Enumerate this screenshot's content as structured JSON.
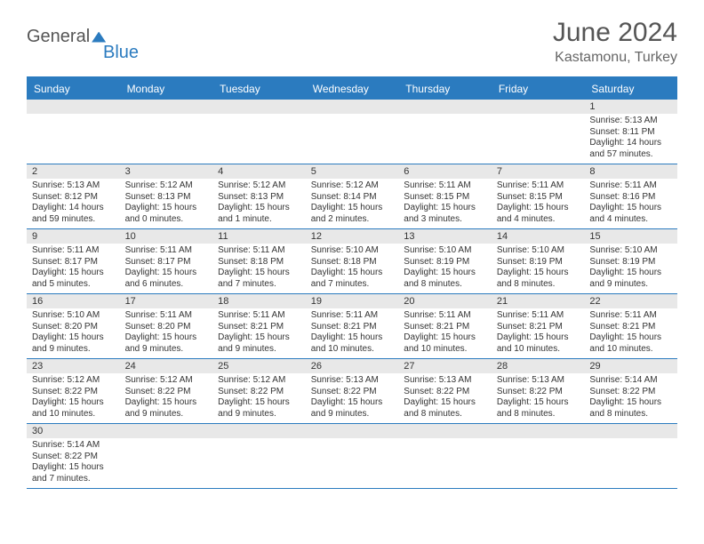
{
  "brand": {
    "part1": "General",
    "part2": "Blue"
  },
  "title": "June 2024",
  "location": "Kastamonu, Turkey",
  "day_names": [
    "Sunday",
    "Monday",
    "Tuesday",
    "Wednesday",
    "Thursday",
    "Friday",
    "Saturday"
  ],
  "colors": {
    "header_bg": "#2b7bbf",
    "header_text": "#ffffff",
    "daynum_bg": "#e8e8e8",
    "border": "#2b7bbf",
    "text": "#333333",
    "title_text": "#555555"
  },
  "weeks": [
    [
      null,
      null,
      null,
      null,
      null,
      null,
      {
        "n": "1",
        "rise": "Sunrise: 5:13 AM",
        "set": "Sunset: 8:11 PM",
        "day": "Daylight: 14 hours and 57 minutes."
      }
    ],
    [
      {
        "n": "2",
        "rise": "Sunrise: 5:13 AM",
        "set": "Sunset: 8:12 PM",
        "day": "Daylight: 14 hours and 59 minutes."
      },
      {
        "n": "3",
        "rise": "Sunrise: 5:12 AM",
        "set": "Sunset: 8:13 PM",
        "day": "Daylight: 15 hours and 0 minutes."
      },
      {
        "n": "4",
        "rise": "Sunrise: 5:12 AM",
        "set": "Sunset: 8:13 PM",
        "day": "Daylight: 15 hours and 1 minute."
      },
      {
        "n": "5",
        "rise": "Sunrise: 5:12 AM",
        "set": "Sunset: 8:14 PM",
        "day": "Daylight: 15 hours and 2 minutes."
      },
      {
        "n": "6",
        "rise": "Sunrise: 5:11 AM",
        "set": "Sunset: 8:15 PM",
        "day": "Daylight: 15 hours and 3 minutes."
      },
      {
        "n": "7",
        "rise": "Sunrise: 5:11 AM",
        "set": "Sunset: 8:15 PM",
        "day": "Daylight: 15 hours and 4 minutes."
      },
      {
        "n": "8",
        "rise": "Sunrise: 5:11 AM",
        "set": "Sunset: 8:16 PM",
        "day": "Daylight: 15 hours and 4 minutes."
      }
    ],
    [
      {
        "n": "9",
        "rise": "Sunrise: 5:11 AM",
        "set": "Sunset: 8:17 PM",
        "day": "Daylight: 15 hours and 5 minutes."
      },
      {
        "n": "10",
        "rise": "Sunrise: 5:11 AM",
        "set": "Sunset: 8:17 PM",
        "day": "Daylight: 15 hours and 6 minutes."
      },
      {
        "n": "11",
        "rise": "Sunrise: 5:11 AM",
        "set": "Sunset: 8:18 PM",
        "day": "Daylight: 15 hours and 7 minutes."
      },
      {
        "n": "12",
        "rise": "Sunrise: 5:10 AM",
        "set": "Sunset: 8:18 PM",
        "day": "Daylight: 15 hours and 7 minutes."
      },
      {
        "n": "13",
        "rise": "Sunrise: 5:10 AM",
        "set": "Sunset: 8:19 PM",
        "day": "Daylight: 15 hours and 8 minutes."
      },
      {
        "n": "14",
        "rise": "Sunrise: 5:10 AM",
        "set": "Sunset: 8:19 PM",
        "day": "Daylight: 15 hours and 8 minutes."
      },
      {
        "n": "15",
        "rise": "Sunrise: 5:10 AM",
        "set": "Sunset: 8:19 PM",
        "day": "Daylight: 15 hours and 9 minutes."
      }
    ],
    [
      {
        "n": "16",
        "rise": "Sunrise: 5:10 AM",
        "set": "Sunset: 8:20 PM",
        "day": "Daylight: 15 hours and 9 minutes."
      },
      {
        "n": "17",
        "rise": "Sunrise: 5:11 AM",
        "set": "Sunset: 8:20 PM",
        "day": "Daylight: 15 hours and 9 minutes."
      },
      {
        "n": "18",
        "rise": "Sunrise: 5:11 AM",
        "set": "Sunset: 8:21 PM",
        "day": "Daylight: 15 hours and 9 minutes."
      },
      {
        "n": "19",
        "rise": "Sunrise: 5:11 AM",
        "set": "Sunset: 8:21 PM",
        "day": "Daylight: 15 hours and 10 minutes."
      },
      {
        "n": "20",
        "rise": "Sunrise: 5:11 AM",
        "set": "Sunset: 8:21 PM",
        "day": "Daylight: 15 hours and 10 minutes."
      },
      {
        "n": "21",
        "rise": "Sunrise: 5:11 AM",
        "set": "Sunset: 8:21 PM",
        "day": "Daylight: 15 hours and 10 minutes."
      },
      {
        "n": "22",
        "rise": "Sunrise: 5:11 AM",
        "set": "Sunset: 8:21 PM",
        "day": "Daylight: 15 hours and 10 minutes."
      }
    ],
    [
      {
        "n": "23",
        "rise": "Sunrise: 5:12 AM",
        "set": "Sunset: 8:22 PM",
        "day": "Daylight: 15 hours and 10 minutes."
      },
      {
        "n": "24",
        "rise": "Sunrise: 5:12 AM",
        "set": "Sunset: 8:22 PM",
        "day": "Daylight: 15 hours and 9 minutes."
      },
      {
        "n": "25",
        "rise": "Sunrise: 5:12 AM",
        "set": "Sunset: 8:22 PM",
        "day": "Daylight: 15 hours and 9 minutes."
      },
      {
        "n": "26",
        "rise": "Sunrise: 5:13 AM",
        "set": "Sunset: 8:22 PM",
        "day": "Daylight: 15 hours and 9 minutes."
      },
      {
        "n": "27",
        "rise": "Sunrise: 5:13 AM",
        "set": "Sunset: 8:22 PM",
        "day": "Daylight: 15 hours and 8 minutes."
      },
      {
        "n": "28",
        "rise": "Sunrise: 5:13 AM",
        "set": "Sunset: 8:22 PM",
        "day": "Daylight: 15 hours and 8 minutes."
      },
      {
        "n": "29",
        "rise": "Sunrise: 5:14 AM",
        "set": "Sunset: 8:22 PM",
        "day": "Daylight: 15 hours and 8 minutes."
      }
    ],
    [
      {
        "n": "30",
        "rise": "Sunrise: 5:14 AM",
        "set": "Sunset: 8:22 PM",
        "day": "Daylight: 15 hours and 7 minutes."
      },
      null,
      null,
      null,
      null,
      null,
      null
    ]
  ]
}
